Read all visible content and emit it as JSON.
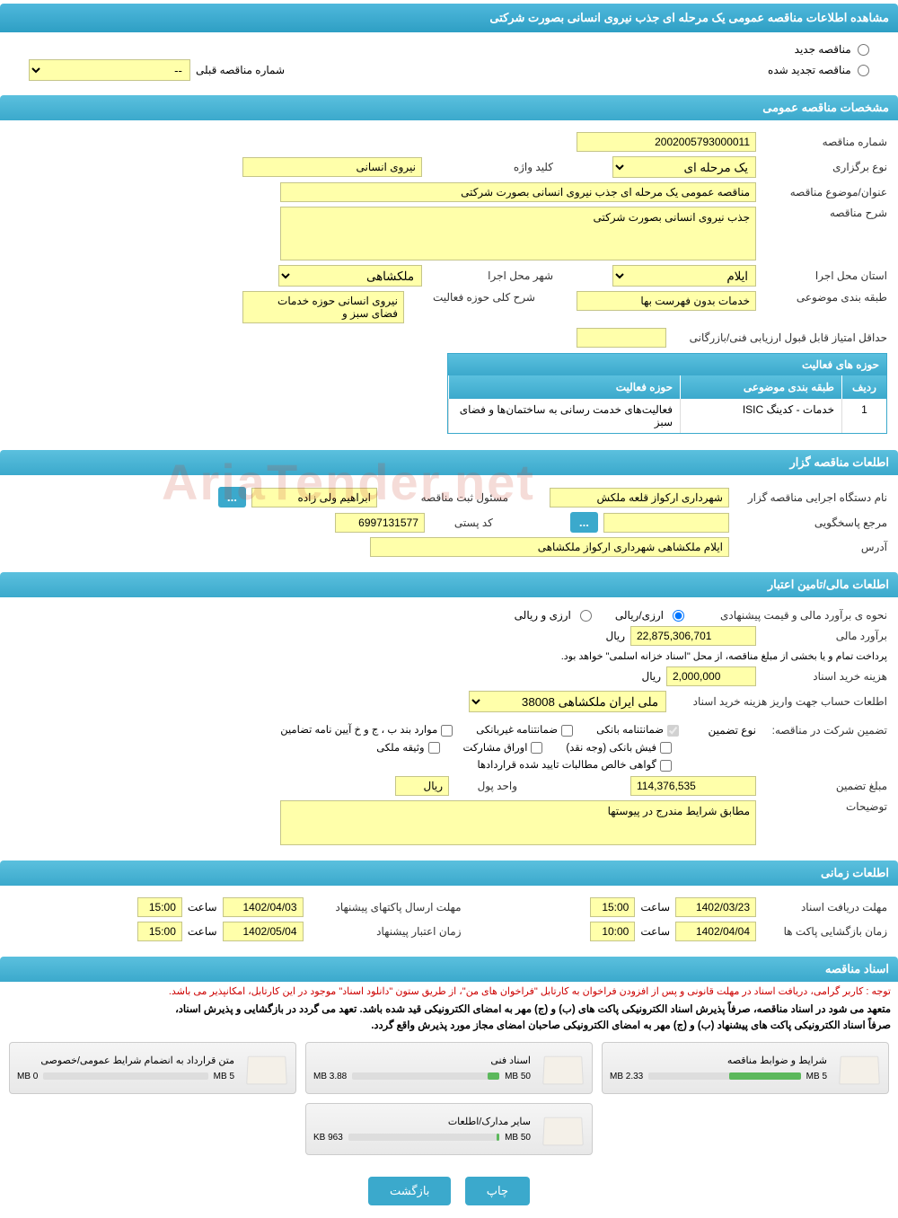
{
  "colors": {
    "header_bg": "#3ba9cc",
    "field_bg": "#ffffaa",
    "field_border": "#c5c589",
    "btn_bg": "#3ba9cc",
    "text": "#333333",
    "red": "#cc0000",
    "bar_fill": "#5cb85c"
  },
  "main_title": "مشاهده اطلاعات مناقصه عمومی یک مرحله ای جذب نیروی انسانی بصورت شرکتی",
  "tender_type": {
    "new_label": "مناقصه جدید",
    "renewed_label": "مناقصه تجدید شده",
    "prev_number_label": "شماره مناقصه قبلی",
    "prev_number_placeholder": "--"
  },
  "general": {
    "section_title": "مشخصات مناقصه عمومی",
    "number_label": "شماره مناقصه",
    "number": "2002005793000011",
    "holding_type_label": "نوع برگزاری",
    "holding_type": "یک مرحله ای",
    "keyword_label": "کلید واژه",
    "keyword": "نیروی انسانی",
    "subject_label": "عنوان/موضوع مناقصه",
    "subject": "مناقصه عمومی یک مرحله ای جذب نیروی انسانی بصورت شرکتی",
    "desc_label": "شرح مناقصه",
    "desc": "جذب نیروی انسانی بصورت شرکتی",
    "province_label": "استان محل اجرا",
    "province": "ایلام",
    "city_label": "شهر محل اجرا",
    "city": "ملکشاهی",
    "category_label": "طبقه بندی موضوعی",
    "category": "خدمات بدون فهرست بها",
    "activity_desc_label": "شرح کلی حوزه فعالیت",
    "activity_desc": "نیروی انسانی حوزه خدمات فضای سبز و",
    "min_score_label": "حداقل امتیاز قابل قبول ارزیابی فنی/بازرگانی",
    "min_score": ""
  },
  "activity_table": {
    "title": "حوزه های فعالیت",
    "col_row": "ردیف",
    "col_cat": "طبقه بندی موضوعی",
    "col_area": "حوزه فعالیت",
    "rows": [
      {
        "n": "1",
        "cat": "خدمات - کدینگ ISIC",
        "area": "فعالیت‌های خدمت رسانی به ساختمان‌ها و فضای سبز"
      }
    ]
  },
  "organizer": {
    "section_title": "اطلعات مناقصه گزار",
    "org_label": "نام دستگاه اجرایی مناقصه گزار",
    "org": "شهرداری ارکواز قلعه ملکش",
    "registrar_label": "مسئول ثبت مناقصه",
    "registrar": "ابراهیم ولی زاده",
    "responder_label": "مرجع پاسخگویی",
    "responder": "",
    "postal_label": "کد پستی",
    "postal": "6997131577",
    "address_label": "آدرس",
    "address": "ایلام ملکشاهی شهرداری ارکواز ملکشاهی"
  },
  "financial": {
    "section_title": "اطلعات مالی/تامین اعتبار",
    "estimate_method_label": "نحوه ی برآورد مالی و قیمت پیشنهادی",
    "rial_option": "ارزی/ریالی",
    "currency_option": "ارزی و ریالی",
    "estimate_label": "برآورد مالی",
    "estimate": "22,875,306,701",
    "unit_rial": "ریال",
    "payment_note": "پرداخت تمام و یا بخشی از مبلغ مناقصه، از محل \"اسناد خزانه اسلمی\" خواهد بود.",
    "doc_cost_label": "هزینه خرید اسناد",
    "doc_cost": "2,000,000",
    "account_label": "اطلعات حساب جهت واریز هزینه خرید اسناد",
    "account": "ملی ایران ملکشاهی 38008",
    "guarantee_label": "تضمین شرکت در مناقصه:",
    "guarantee_type_label": "نوع تضمین",
    "cb_bank_guarantee": "ضمانتنامه بانکی",
    "cb_nonbank_guarantee": "ضمانتنامه غیربانکی",
    "cb_bylaw": "موارد بند ب ، ج و خ آیین نامه تضامین",
    "cb_bank_receipt": "فیش بانکی (وجه نقد)",
    "cb_bonds": "اوراق مشارکت",
    "cb_property": "وثیقه ملکی",
    "cb_net_claims": "گواهی خالص مطالبات تایید شده قراردادها",
    "guarantee_amount_label": "مبلغ تضمین",
    "guarantee_amount": "114,376,535",
    "currency_unit_label": "واحد پول",
    "currency_unit": "ریال",
    "notes_label": "توضیحات",
    "notes": "مطابق شرایط مندرج در پیوستها"
  },
  "timing": {
    "section_title": "اطلعات زمانی",
    "doc_deadline_label": "مهلت دریافت اسناد",
    "doc_deadline_date": "1402/03/23",
    "doc_deadline_time": "15:00",
    "send_deadline_label": "مهلت ارسال پاکتهای پیشنهاد",
    "send_deadline_date": "1402/04/03",
    "send_deadline_time": "15:00",
    "open_label": "زمان بازگشایی پاکت ها",
    "open_date": "1402/04/04",
    "open_time": "10:00",
    "validity_label": "زمان اعتبار پیشنهاد",
    "validity_date": "1402/05/04",
    "validity_time": "15:00",
    "time_label": "ساعت"
  },
  "docs": {
    "section_title": "اسناد مناقصه",
    "note_red": "توجه : کاربر گرامی، دریافت اسناد در مهلت قانونی و پس از افزودن فراخوان به کارتابل \"فراخوان های من\"، از طریق ستون \"دانلود اسناد\" موجود در این کارتابل، امکانپذیر می باشد.",
    "note_bold1": "متعهد می شود در اسناد مناقصه، صرفاً پذیرش اسناد الکترونیکی پاکت های (ب) و (ج) مهر به امضای الکترونیکی قید شده باشد. تعهد می گردد در بازگشایی و پذیرش اسناد،",
    "note_bold2": "صرفاً اسناد الکترونیکی پاکت های پیشنهاد (ب) و (ج) مهر به امضای الکترونیکی صاحبان امضای مجاز مورد پذیرش واقع گردد.",
    "files": [
      {
        "title": "شرایط و ضوابط مناقصه",
        "used": "2.33 MB",
        "total": "5 MB",
        "pct": 47
      },
      {
        "title": "اسناد فنی",
        "used": "3.88 MB",
        "total": "50 MB",
        "pct": 8
      },
      {
        "title": "متن قرارداد به انضمام شرایط عمومی/خصوصی",
        "used": "0 MB",
        "total": "5 MB",
        "pct": 0
      },
      {
        "title": "سایر مدارک/اطلعات",
        "used": "963 KB",
        "total": "50 MB",
        "pct": 2
      }
    ]
  },
  "buttons": {
    "print": "چاپ",
    "back": "بازگشت",
    "dots": "..."
  },
  "watermark": "AriaTender.net"
}
